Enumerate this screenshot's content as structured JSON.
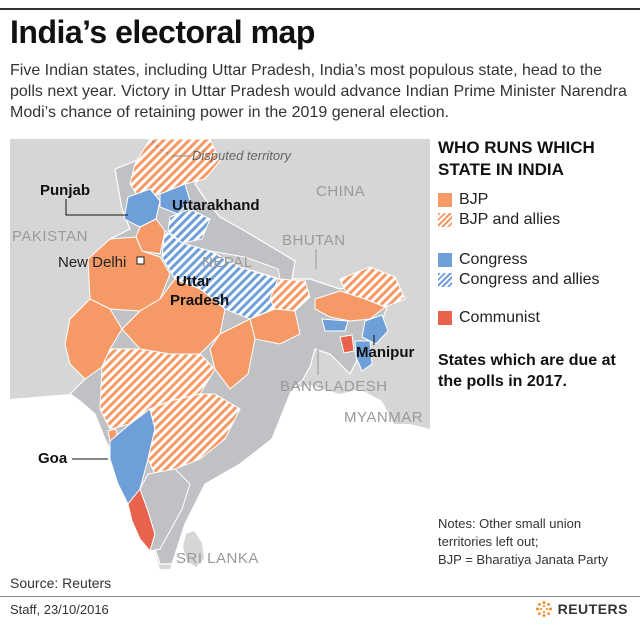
{
  "header": {
    "title": "India’s electoral map",
    "subtitle": "Five Indian states, including Uttar Pradesh, India’s most populous state, head to the polls next year. Victory in Uttar Pradesh would advance Indian Prime Minister Narendra Modi’s chance of retaining power in the 2019 general election."
  },
  "legend": {
    "title": "WHO RUNS WHICH STATE IN INDIA",
    "items": [
      {
        "label": "BJP",
        "color": "#f59a66",
        "pattern": "solid"
      },
      {
        "label": "BJP and allies",
        "color": "#f59a66",
        "pattern": "hatched"
      },
      {
        "label": "Congress",
        "color": "#6f9fd8",
        "pattern": "solid"
      },
      {
        "label": "Congress and allies",
        "color": "#6f9fd8",
        "pattern": "hatched"
      },
      {
        "label": "Communist",
        "color": "#e8624e",
        "pattern": "solid"
      }
    ],
    "due_note": "States which are due at the polls in 2017."
  },
  "map": {
    "countries": [
      "PAKISTAN",
      "CHINA",
      "NEPAL",
      "BHUTAN",
      "BANGLADESH",
      "MYANMAR",
      "SRI LANKA"
    ],
    "disputed_label": "Disputed territory",
    "city": "New Delhi",
    "states_due": {
      "punjab": "Punjab",
      "uttarakhand": "Uttarakhand",
      "uttar_pradesh_line1": "Uttar",
      "uttar_pradesh_line2": "Pradesh",
      "goa": "Goa",
      "manipur": "Manipur"
    },
    "colors": {
      "land_neighbor": "#d6d6d6",
      "sea": "#ffffff",
      "state_default": "#bfc1c4",
      "border": "#ffffff"
    }
  },
  "notes": {
    "line1": "Notes: Other small union",
    "line2": "territories left out;",
    "line3": "BJP = Bharatiya Janata Party"
  },
  "footer": {
    "source": "Source: Reuters",
    "credit": "Staff,  23/10/2016",
    "brand": "REUTERS"
  }
}
